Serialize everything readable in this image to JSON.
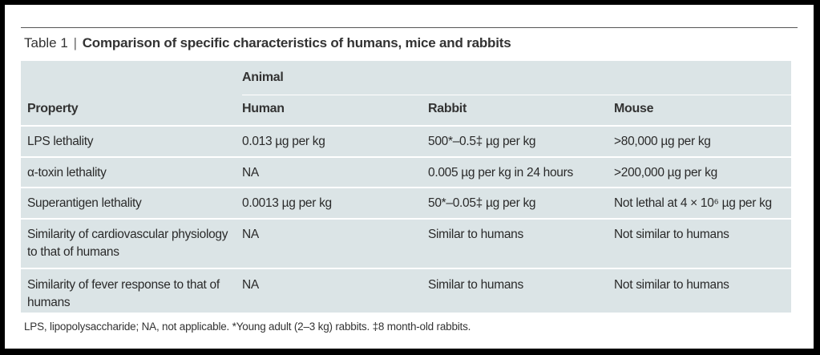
{
  "table": {
    "number": "Table 1",
    "separator": "|",
    "title": "Comparison of specific characteristics of humans, mice and rabbits",
    "group_header": "Animal",
    "columns": [
      "Property",
      "Human",
      "Rabbit",
      "Mouse"
    ],
    "rows": [
      [
        "LPS lethality",
        "0.013 µg per kg",
        "500*–0.5‡ µg per kg",
        ">80,000 µg per kg"
      ],
      [
        "α-toxin lethality",
        "NA",
        "0.005 µg per kg in 24 hours",
        ">200,000 µg per kg"
      ],
      [
        "Superantigen lethality",
        "0.0013 µg per kg",
        "50*–0.05‡ µg per kg",
        "Not lethal at 4 × 10⁶ µg per kg"
      ],
      [
        "Similarity of cardiovascular physiology to that of humans",
        "NA",
        "Similar to humans",
        "Not similar to humans"
      ],
      [
        "Similarity of fever response to that of humans",
        "NA",
        "Similar to humans",
        "Not similar to humans"
      ]
    ],
    "footnote": "LPS, lipopolysaccharide; NA, not applicable. *Young adult (2–3 kg) rabbits. ‡8 month-old rabbits."
  }
}
